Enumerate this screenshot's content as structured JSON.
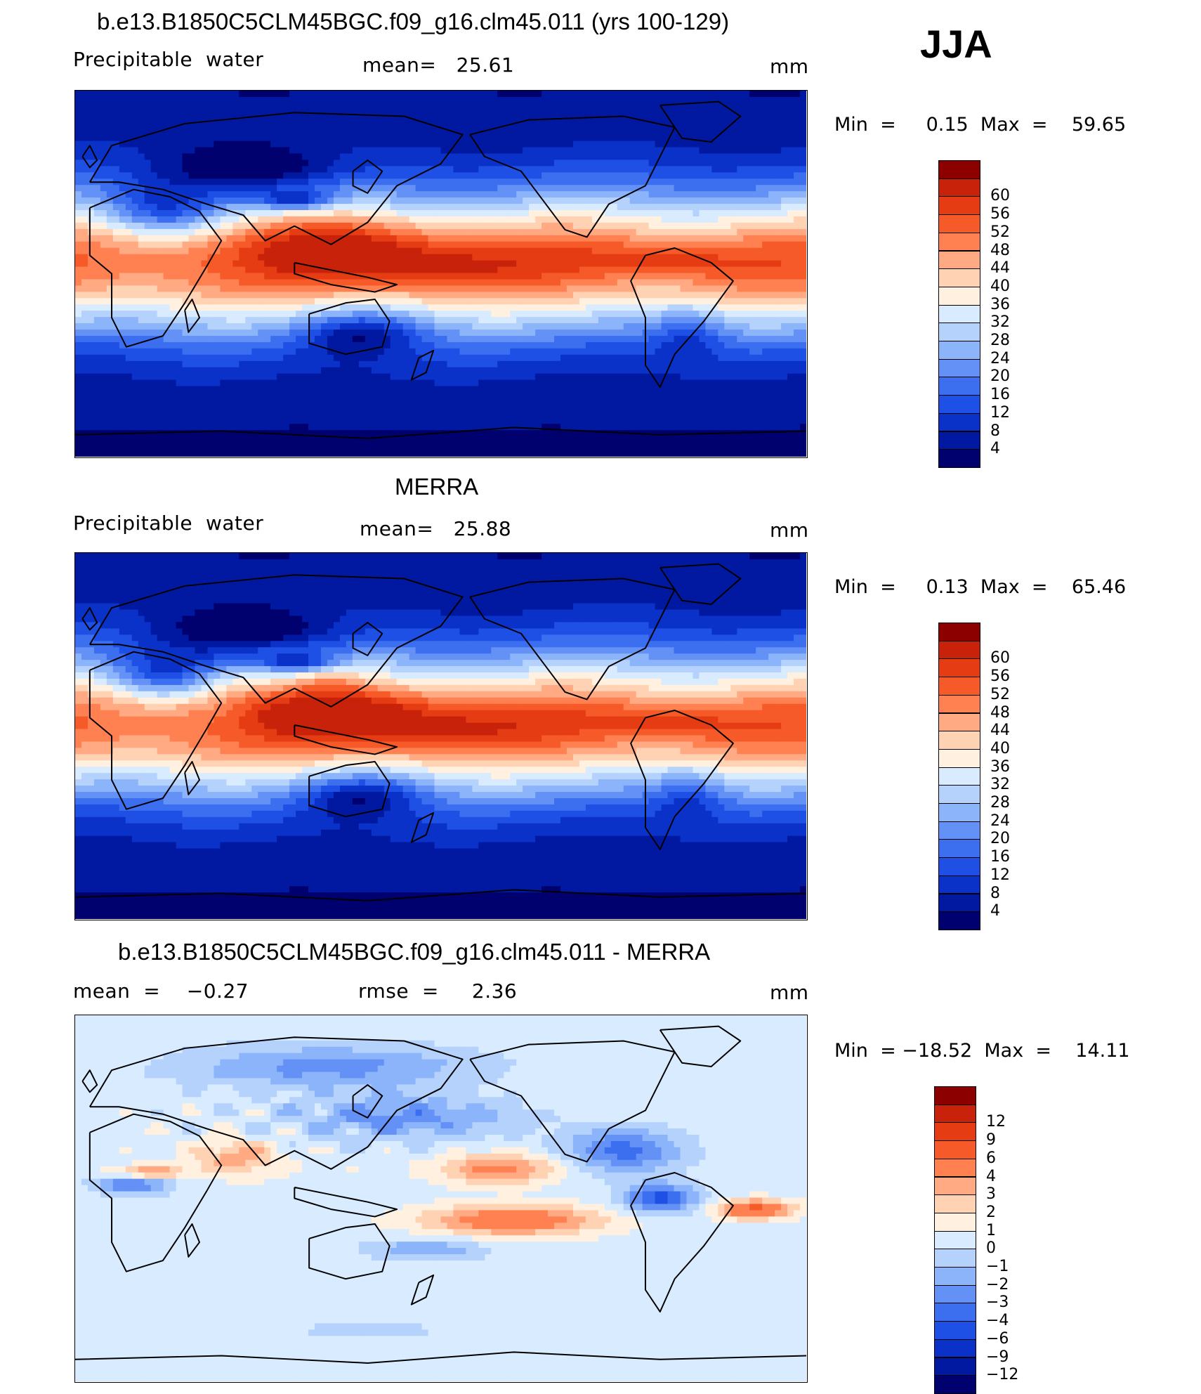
{
  "season": "JJA",
  "panels": [
    {
      "id": "model",
      "title": "b.e13.B1850C5CLM45BGC.f09_g16.clm45.011 (yrs 100-129)",
      "left_label": "Precipitable  water",
      "center_label": "mean=   25.61",
      "units": "mm",
      "minmax": "Min  =     0.15  Max  =    59.65",
      "field": "precip_water",
      "colorbar": {
        "colors": [
          "#00006e",
          "#0019a0",
          "#0a32c8",
          "#1e50e6",
          "#3c6ef0",
          "#6491f5",
          "#8cb4fa",
          "#b4d2fc",
          "#d8ebff",
          "#fff0e0",
          "#ffd2b4",
          "#ffaa82",
          "#ff8050",
          "#f55a28",
          "#e63c14",
          "#c8230a",
          "#8c0000"
        ],
        "ticks": [
          "4",
          "8",
          "12",
          "16",
          "20",
          "24",
          "28",
          "32",
          "36",
          "40",
          "44",
          "48",
          "52",
          "56",
          "60"
        ]
      }
    },
    {
      "id": "obs",
      "title": "MERRA",
      "left_label": "Precipitable  water",
      "center_label": "mean=   25.88",
      "units": "mm",
      "minmax": "Min  =     0.13  Max  =    65.46",
      "field": "precip_water",
      "colorbar": {
        "colors": [
          "#00006e",
          "#0019a0",
          "#0a32c8",
          "#1e50e6",
          "#3c6ef0",
          "#6491f5",
          "#8cb4fa",
          "#b4d2fc",
          "#d8ebff",
          "#fff0e0",
          "#ffd2b4",
          "#ffaa82",
          "#ff8050",
          "#f55a28",
          "#e63c14",
          "#c8230a",
          "#8c0000"
        ],
        "ticks": [
          "4",
          "8",
          "12",
          "16",
          "20",
          "24",
          "28",
          "32",
          "36",
          "40",
          "44",
          "48",
          "52",
          "56",
          "60"
        ]
      }
    },
    {
      "id": "diff",
      "title": "b.e13.B1850C5CLM45BGC.f09_g16.clm45.011 - MERRA",
      "left_label": "mean  =    −0.27",
      "center_label": "rmse  =     2.36",
      "units": "mm",
      "minmax": "Min  = −18.52  Max  =    14.11",
      "field": "difference",
      "colorbar": {
        "colors": [
          "#00006e",
          "#0019a0",
          "#0a32c8",
          "#1e50e6",
          "#3c6ef0",
          "#6491f5",
          "#8cb4fa",
          "#b4d2fc",
          "#d8ebff",
          "#fff0e0",
          "#ffd2b4",
          "#ffaa82",
          "#ff8050",
          "#f55a28",
          "#e63c14",
          "#c8230a",
          "#8c0000"
        ],
        "ticks": [
          "−12",
          "−9",
          "−6",
          "−4",
          "−3",
          "−2",
          "−1",
          "0",
          "1",
          "2",
          "3",
          "4",
          "6",
          "9",
          "12"
        ]
      }
    }
  ],
  "palette": {
    "low": "#00006e",
    "blue": "#1e50e6",
    "light_blue": "#b4d2fc",
    "neutral": "#fff0e0",
    "orange": "#ff8050",
    "red": "#e63c14",
    "high": "#8c0000",
    "coastline": "#000000"
  }
}
